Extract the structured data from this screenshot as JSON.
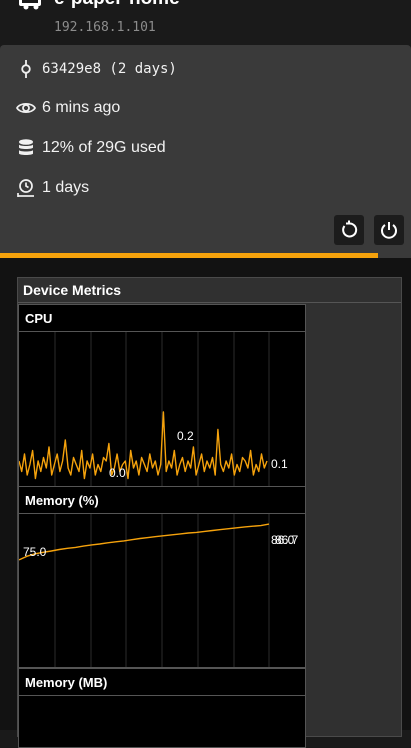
{
  "device": {
    "name": "e-paper-home",
    "ip": "192.168.1.101"
  },
  "info": {
    "commit": "63429e8 (2 days)",
    "last_seen": "6 mins ago",
    "storage": "12% of 29G used",
    "uptime": "1 days"
  },
  "actions": {
    "restart_icon": "restart-icon",
    "power_icon": "power-icon"
  },
  "progress": {
    "value": 0.92,
    "color": "#f5a20c"
  },
  "metrics": {
    "title": "Device Metrics",
    "charts": [
      {
        "title": "CPU"
      },
      {
        "title": "Memory (%)"
      },
      {
        "title": "Memory (MB)"
      }
    ]
  },
  "chart_data": [
    {
      "type": "line",
      "title": "CPU",
      "color": "#f5a20c",
      "grid": true,
      "annotations": [
        "0.2",
        "0.0",
        "0.1"
      ],
      "values": [
        0.06,
        0.03,
        0.08,
        0.02,
        0.05,
        0.09,
        0.01,
        0.06,
        0.03,
        0.07,
        0.04,
        0.1,
        0.02,
        0.05,
        0.08,
        0.03,
        0.06,
        0.12,
        0.04,
        0.02,
        0.07,
        0.05,
        0.03,
        0.09,
        0.01,
        0.06,
        0.04,
        0.08,
        0.02,
        0.05,
        0.03,
        0.07,
        0.06,
        0.11,
        0.02,
        0.04,
        0.08,
        0.03,
        0.05,
        0.06,
        0.01,
        0.09,
        0.04,
        0.06,
        0.02,
        0.07,
        0.05,
        0.03,
        0.08,
        0.04,
        0.06,
        0.02,
        0.05,
        0.2,
        0.03,
        0.06,
        0.04,
        0.09,
        0.02,
        0.05,
        0.07,
        0.03,
        0.06,
        0.04,
        0.1,
        0.02,
        0.05,
        0.08,
        0.03,
        0.06,
        0.04,
        0.07,
        0.02,
        0.15,
        0.05,
        0.03,
        0.06,
        0.04,
        0.08,
        0.02,
        0.05,
        0.03,
        0.07,
        0.06,
        0.04,
        0.09,
        0.02,
        0.05,
        0.03,
        0.08,
        0.04,
        0.06
      ]
    },
    {
      "type": "line",
      "title": "Memory (%)",
      "color": "#f5a20c",
      "grid": true,
      "annotations": [
        "75.0",
        "86.0",
        "86.7"
      ],
      "values": [
        75.0,
        76.2,
        77.0,
        77.5,
        77.9,
        78.4,
        78.8,
        79.1,
        79.5,
        79.9,
        80.2,
        80.6,
        80.9,
        81.2,
        81.6,
        82.0,
        82.3,
        82.6,
        82.9,
        83.2,
        83.5,
        83.8,
        84.0,
        84.3,
        84.6,
        84.9,
        85.2,
        85.5,
        85.8,
        86.0,
        86.2,
        86.7
      ]
    }
  ]
}
